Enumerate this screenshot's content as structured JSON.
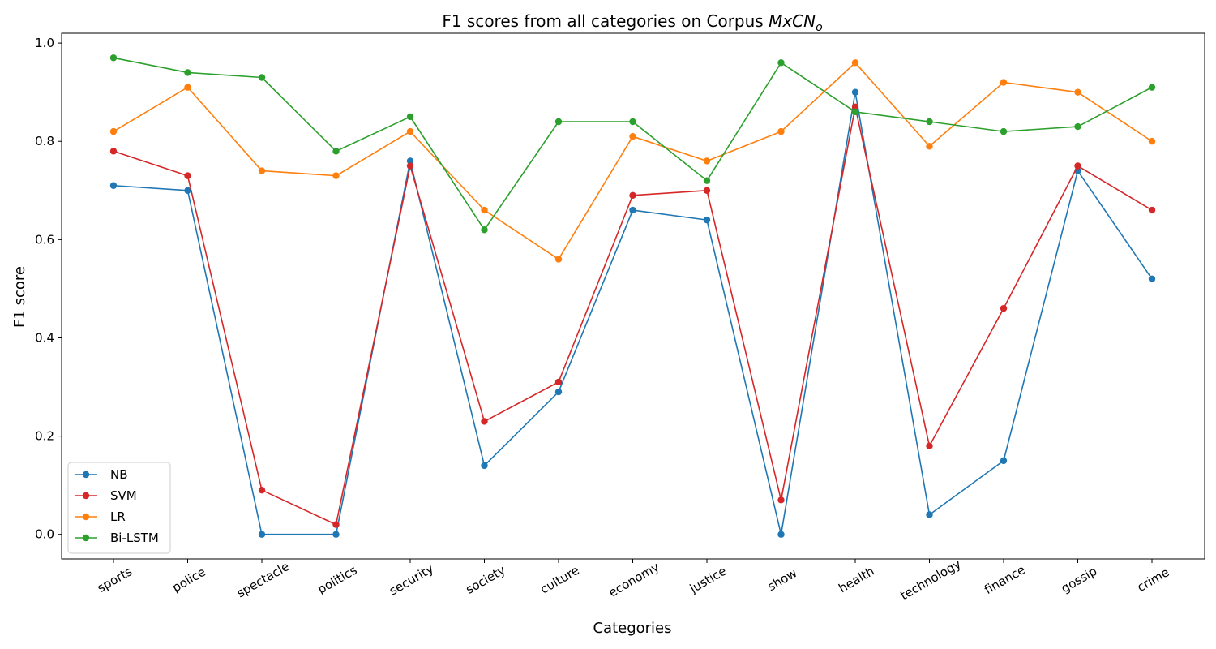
{
  "chart_data": {
    "type": "line",
    "title": "F1 scores from all categories on Corpus ",
    "title_math": "MxCN",
    "title_math_sub": "o",
    "xlabel": "Categories",
    "ylabel": "F1 score",
    "ylim": [
      -0.05,
      1.02
    ],
    "yticks": [
      0.0,
      0.2,
      0.4,
      0.6,
      0.8,
      1.0
    ],
    "ytick_labels": [
      "0.0",
      "0.2",
      "0.4",
      "0.6",
      "0.8",
      "1.0"
    ],
    "grid": false,
    "legend_position": "lower-left",
    "categories": [
      "sports",
      "police",
      "spectacle",
      "politics",
      "security",
      "society",
      "culture",
      "economy",
      "justice",
      "show",
      "health",
      "technology",
      "finance",
      "gossip",
      "crime"
    ],
    "series": [
      {
        "name": "NB",
        "color": "#1f77b4",
        "values": [
          0.71,
          0.7,
          0.0,
          0.0,
          0.76,
          0.14,
          0.29,
          0.66,
          0.64,
          0.0,
          0.9,
          0.04,
          0.15,
          0.74,
          0.52
        ]
      },
      {
        "name": "SVM",
        "color": "#d62728",
        "values": [
          0.78,
          0.73,
          0.09,
          0.02,
          0.75,
          0.23,
          0.31,
          0.69,
          0.7,
          0.07,
          0.87,
          0.18,
          0.46,
          0.75,
          0.66
        ]
      },
      {
        "name": "LR",
        "color": "#ff7f0e",
        "values": [
          0.82,
          0.91,
          0.74,
          0.73,
          0.82,
          0.66,
          0.56,
          0.81,
          0.76,
          0.82,
          0.96,
          0.79,
          0.92,
          0.9,
          0.8
        ]
      },
      {
        "name": "Bi-LSTM",
        "color": "#2ca02c",
        "values": [
          0.97,
          0.94,
          0.93,
          0.78,
          0.85,
          0.62,
          0.84,
          0.84,
          0.72,
          0.96,
          0.86,
          0.84,
          0.82,
          0.83,
          0.91
        ]
      }
    ]
  }
}
